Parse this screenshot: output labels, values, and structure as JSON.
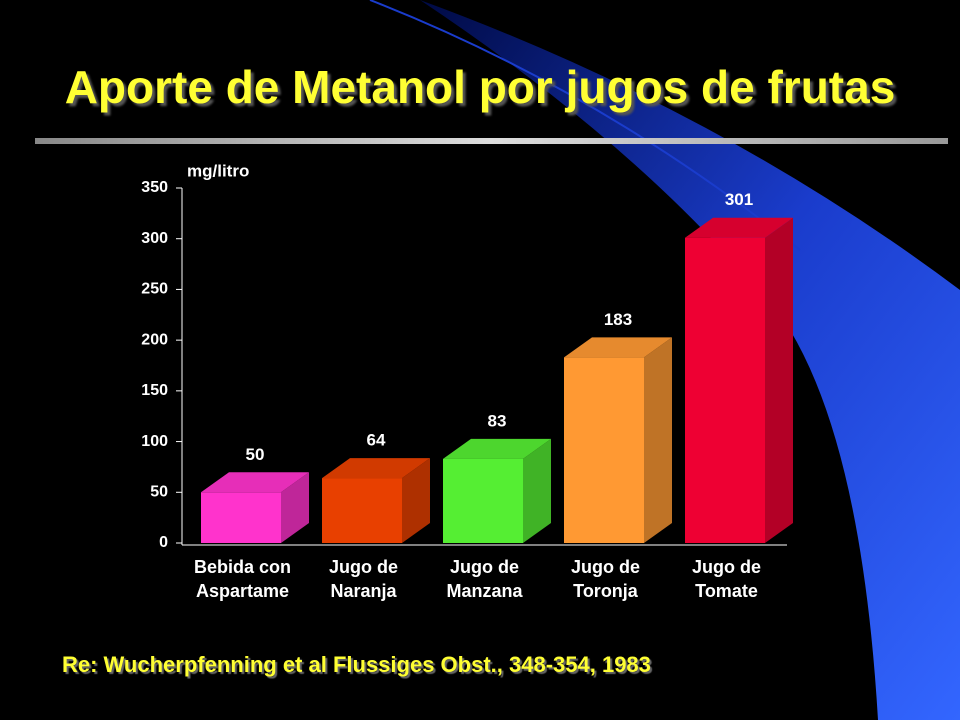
{
  "chart_data": {
    "type": "bar3d",
    "title": "Aporte de Metanol por jugos de frutas",
    "y_label": "mg/litro",
    "categories": [
      "Bebida con Aspartame",
      "Jugo de Naranja",
      "Jugo de Manzana",
      "Jugo de Toronja",
      "Jugo de Tomate"
    ],
    "values": [
      50,
      64,
      83,
      183,
      301
    ],
    "colors": [
      "#ff33cc",
      "#e84000",
      "#55ee33",
      "#ff9933",
      "#ee0033"
    ],
    "ylim": [
      0,
      350
    ],
    "yticks": [
      0,
      50,
      100,
      150,
      200,
      250,
      300,
      350
    ],
    "footnote": "Re: Wucherpfenning et al Flussiges Obst., 348-354, 1983"
  }
}
